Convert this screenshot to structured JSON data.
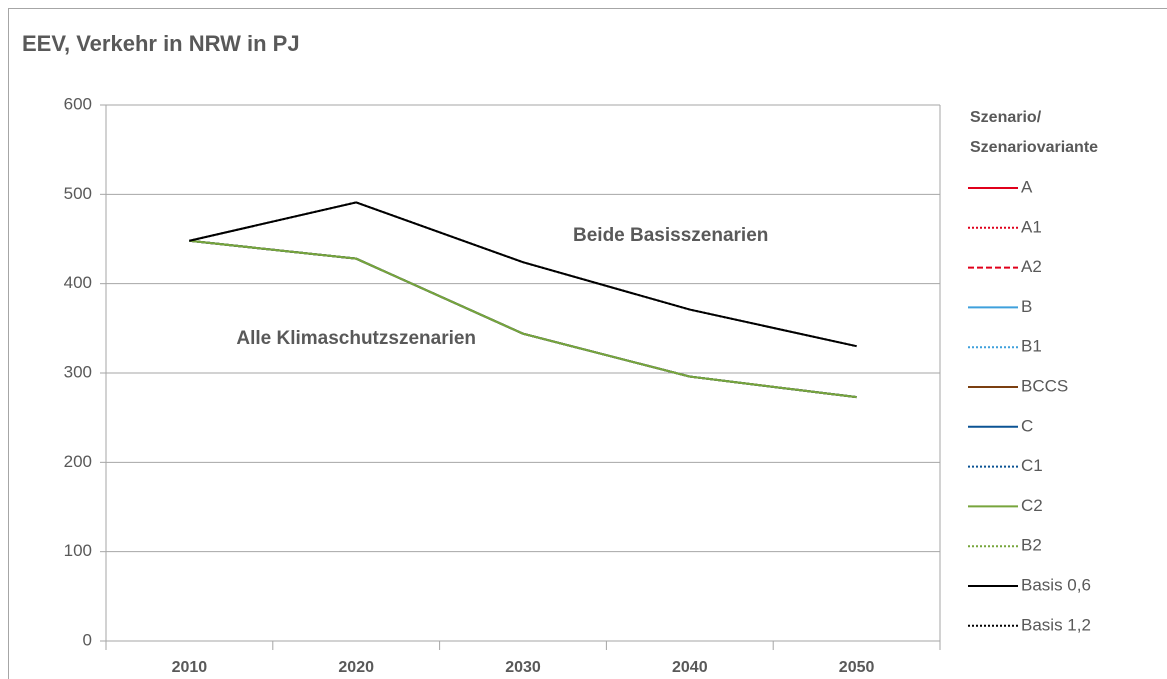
{
  "chart_data": {
    "type": "line",
    "title": "EEV, Verkehr in NRW in PJ",
    "categories": [
      "2010",
      "2020",
      "2030",
      "2040",
      "2050"
    ],
    "ylim": [
      0,
      600
    ],
    "yticks": [
      0,
      100,
      200,
      300,
      400,
      500,
      600
    ],
    "grid": true,
    "legend_title": [
      "Szenario/",
      "Szenariovariante"
    ],
    "annotations": [
      {
        "text": "Beide Basisszenarien",
        "x": "2030",
        "y": 424
      },
      {
        "text": "Alle Klimaschutzszenarien",
        "x": "2020",
        "y": 330
      }
    ],
    "series": [
      {
        "name": "A",
        "color": "#e0001b",
        "dash": "solid",
        "values": [
          448,
          428,
          344,
          296,
          273
        ]
      },
      {
        "name": "A1",
        "color": "#e0001b",
        "dash": "dotted",
        "values": [
          448,
          428,
          344,
          296,
          273
        ]
      },
      {
        "name": "A2",
        "color": "#e0001b",
        "dash": "dashed",
        "values": [
          448,
          428,
          344,
          296,
          273
        ]
      },
      {
        "name": "B",
        "color": "#3fa0dc",
        "dash": "solid",
        "values": [
          448,
          428,
          344,
          296,
          273
        ]
      },
      {
        "name": "B1",
        "color": "#3fa0dc",
        "dash": "dotted",
        "values": [
          448,
          428,
          344,
          296,
          273
        ]
      },
      {
        "name": "BCCS",
        "color": "#7b3f10",
        "dash": "solid",
        "values": [
          448,
          428,
          344,
          296,
          273
        ]
      },
      {
        "name": "C",
        "color": "#0b5394",
        "dash": "solid",
        "values": [
          448,
          428,
          344,
          296,
          273
        ]
      },
      {
        "name": "C1",
        "color": "#0b5394",
        "dash": "dotted",
        "values": [
          448,
          428,
          344,
          296,
          273
        ]
      },
      {
        "name": "C2",
        "color": "#77a53c",
        "dash": "solid",
        "values": [
          448,
          428,
          344,
          296,
          273
        ]
      },
      {
        "name": "B2",
        "color": "#77a53c",
        "dash": "dotted",
        "values": [
          448,
          428,
          344,
          296,
          273
        ]
      },
      {
        "name": "Basis 0,6",
        "color": "#000000",
        "dash": "solid",
        "values": [
          448,
          491,
          424,
          371,
          330
        ]
      },
      {
        "name": "Basis 1,2",
        "color": "#000000",
        "dash": "dotted",
        "values": [
          448,
          491,
          424,
          371,
          330
        ]
      }
    ]
  }
}
